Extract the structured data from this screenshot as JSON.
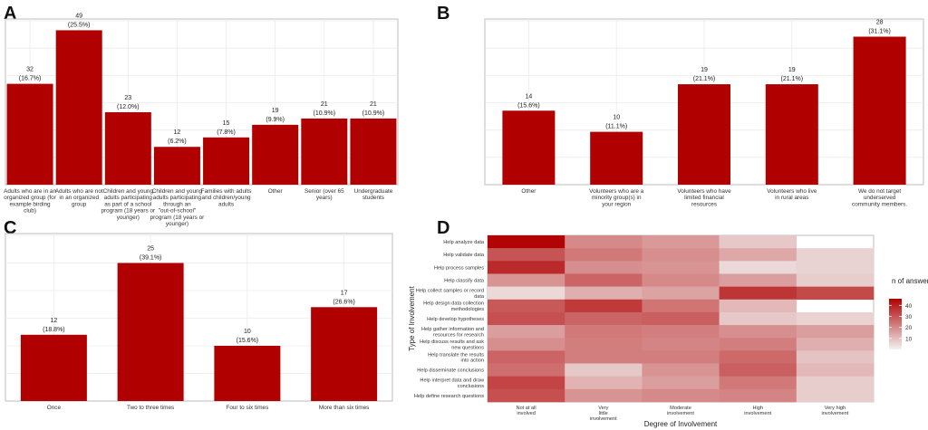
{
  "colors": {
    "bar": "#b00000",
    "grid": "#ebebeb",
    "panel_border": "#bdbdbd",
    "heat_low": "#f2f2f2",
    "heat_high": "#b00000",
    "text": "#222222"
  },
  "chart_data": [
    {
      "panel_label": "A",
      "type": "bar",
      "title": "",
      "xlabel": "",
      "ylabel": "",
      "ylim": [
        0,
        52
      ],
      "categories": [
        [
          "Adults who are in an",
          "organized group (for",
          "example birding",
          "club)"
        ],
        [
          "Adults who are not",
          "in an organized",
          "group"
        ],
        [
          "Children and young",
          "adults participating",
          "as part of a school",
          "program (18 years or",
          "younger)"
        ],
        [
          "Children and young",
          "adults participating",
          "through an",
          "\"out-of-school\"",
          "program (18 years or",
          "younger)"
        ],
        [
          "Families with adults",
          "and children/young",
          "adults"
        ],
        [
          "Other"
        ],
        [
          "Senior (over 65",
          "years)"
        ],
        [
          "Undergraduate",
          "students"
        ]
      ],
      "values": [
        32,
        49,
        23,
        12,
        15,
        19,
        21,
        21
      ],
      "value_labels": [
        "32",
        "49",
        "23",
        "12",
        "15",
        "19",
        "21",
        "21"
      ],
      "pct_labels": [
        "(16.7%)",
        "(25.5%)",
        "(12.0%)",
        "(6.2%)",
        "(7.8%)",
        "(9.9%)",
        "(10.9%)",
        "(10.9%)"
      ]
    },
    {
      "panel_label": "B",
      "type": "bar",
      "title": "",
      "xlabel": "",
      "ylabel": "",
      "ylim": [
        0,
        31
      ],
      "categories": [
        [
          "Other"
        ],
        [
          "Volunteers who are a",
          "minority group(s) in",
          "your region"
        ],
        [
          "Volunteers who have",
          "limited financial",
          "resources"
        ],
        [
          "Volunteers who live",
          "in rural areas"
        ],
        [
          "We do not target",
          "underserved",
          "community members."
        ]
      ],
      "values": [
        14,
        10,
        19,
        19,
        28
      ],
      "value_labels": [
        "14",
        "10",
        "19",
        "19",
        "28"
      ],
      "pct_labels": [
        "(15.6%)",
        "(11.1%)",
        "(21.1%)",
        "(21.1%)",
        "(31.1%)"
      ]
    },
    {
      "panel_label": "C",
      "type": "bar",
      "title": "",
      "xlabel": "",
      "ylabel": "",
      "ylim": [
        0,
        30
      ],
      "categories": [
        [
          "Once"
        ],
        [
          "Two to three times"
        ],
        [
          "Four to six times"
        ],
        [
          "More than six times"
        ]
      ],
      "values": [
        12,
        25,
        10,
        17
      ],
      "value_labels": [
        "12",
        "25",
        "10",
        "17"
      ],
      "pct_labels": [
        "(18.8%)",
        "(39.1%)",
        "(15.6%)",
        "(26.6%)"
      ]
    },
    {
      "panel_label": "D",
      "type": "heatmap",
      "xlabel": "Degree of Involvement",
      "ylabel": "Type of Involvement",
      "x_categories": [
        [
          "Not at all",
          "involved"
        ],
        [
          "Very",
          "little",
          "involvement"
        ],
        [
          "Moderate",
          "involvement"
        ],
        [
          "High",
          "involvement"
        ],
        [
          "Very high",
          "involvement"
        ]
      ],
      "y_categories": [
        [
          "Help analyze data"
        ],
        [
          "Help validate data"
        ],
        [
          "Help process samples"
        ],
        [
          "Help classify data"
        ],
        [
          "Help collect samples or record",
          "data"
        ],
        [
          "Help design data collection",
          "methodologies"
        ],
        [
          "Help develop hypotheses"
        ],
        [
          "Help gather information and",
          "resources for research"
        ],
        [
          "Help discuss results and ask",
          "new questions"
        ],
        [
          "Help translate the results",
          "into action"
        ],
        [
          "Help disseminate conclusions"
        ],
        [
          "Help interpret data and draw",
          "conclusions"
        ],
        [
          "Help define research questions"
        ]
      ],
      "values": [
        [
          45,
          20,
          17,
          8,
          null
        ],
        [
          30,
          23,
          19,
          14,
          6
        ],
        [
          38,
          19,
          18,
          5,
          6
        ],
        [
          18,
          27,
          20,
          16,
          7
        ],
        [
          5,
          13,
          15,
          36,
          32
        ],
        [
          29,
          35,
          24,
          11,
          null
        ],
        [
          31,
          27,
          28,
          8,
          6
        ],
        [
          16,
          23,
          22,
          19,
          16
        ],
        [
          19,
          22,
          21,
          22,
          13
        ],
        [
          27,
          22,
          22,
          26,
          9
        ],
        [
          25,
          8,
          18,
          28,
          11
        ],
        [
          33,
          12,
          16,
          23,
          7
        ],
        [
          31,
          18,
          20,
          21,
          7
        ]
      ],
      "legend": {
        "title": "n of answers",
        "ticks": [
          10,
          20,
          30,
          40
        ],
        "range": [
          0,
          46
        ]
      }
    }
  ]
}
